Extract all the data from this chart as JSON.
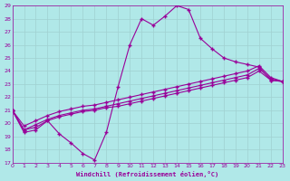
{
  "xlabel": "Windchill (Refroidissement éolien,°C)",
  "bg_color": "#b0e8e8",
  "grid_color": "#a0d0d0",
  "line_color": "#990099",
  "xlim": [
    0,
    23
  ],
  "ylim": [
    17,
    29
  ],
  "xticks": [
    0,
    1,
    2,
    3,
    4,
    5,
    6,
    7,
    8,
    9,
    10,
    11,
    12,
    13,
    14,
    15,
    16,
    17,
    18,
    19,
    20,
    21,
    22,
    23
  ],
  "yticks": [
    17,
    18,
    19,
    20,
    21,
    22,
    23,
    24,
    25,
    26,
    27,
    28,
    29
  ],
  "series1_x": [
    0,
    1,
    2,
    3,
    4,
    5,
    6,
    7,
    8,
    9,
    10,
    11,
    12,
    13,
    14,
    15,
    16,
    17,
    18,
    19,
    20,
    21,
    22,
    23
  ],
  "series1_y": [
    21.0,
    19.3,
    19.5,
    20.2,
    19.2,
    18.5,
    17.7,
    17.2,
    19.3,
    22.8,
    26.0,
    28.0,
    27.5,
    28.2,
    29.0,
    28.7,
    26.5,
    25.7,
    25.0,
    24.7,
    24.5,
    24.3,
    23.3,
    23.2
  ],
  "series2_x": [
    0,
    1,
    2,
    3,
    4,
    5,
    6,
    7,
    8,
    9,
    10,
    11,
    12,
    13,
    14,
    15,
    16,
    17,
    18,
    19,
    20,
    21,
    22,
    23
  ],
  "series2_y": [
    21.0,
    19.5,
    19.7,
    20.2,
    20.5,
    20.7,
    20.9,
    21.0,
    21.2,
    21.3,
    21.5,
    21.7,
    21.9,
    22.1,
    22.3,
    22.5,
    22.7,
    22.9,
    23.1,
    23.3,
    23.5,
    24.0,
    23.3,
    23.2
  ],
  "series3_x": [
    0,
    1,
    2,
    3,
    4,
    5,
    6,
    7,
    8,
    9,
    10,
    11,
    12,
    13,
    14,
    15,
    16,
    17,
    18,
    19,
    20,
    21,
    22,
    23
  ],
  "series3_y": [
    21.0,
    19.5,
    19.9,
    20.3,
    20.6,
    20.8,
    21.0,
    21.1,
    21.3,
    21.5,
    21.7,
    21.9,
    22.1,
    22.3,
    22.5,
    22.7,
    22.9,
    23.1,
    23.3,
    23.5,
    23.7,
    24.2,
    23.4,
    23.2
  ],
  "series4_x": [
    0,
    1,
    2,
    3,
    4,
    5,
    6,
    7,
    8,
    9,
    10,
    11,
    12,
    13,
    14,
    15,
    16,
    17,
    18,
    19,
    20,
    21,
    22,
    23
  ],
  "series4_y": [
    21.0,
    19.8,
    20.2,
    20.6,
    20.9,
    21.1,
    21.3,
    21.4,
    21.6,
    21.8,
    22.0,
    22.2,
    22.4,
    22.6,
    22.8,
    23.0,
    23.2,
    23.4,
    23.6,
    23.8,
    24.0,
    24.4,
    23.5,
    23.2
  ]
}
